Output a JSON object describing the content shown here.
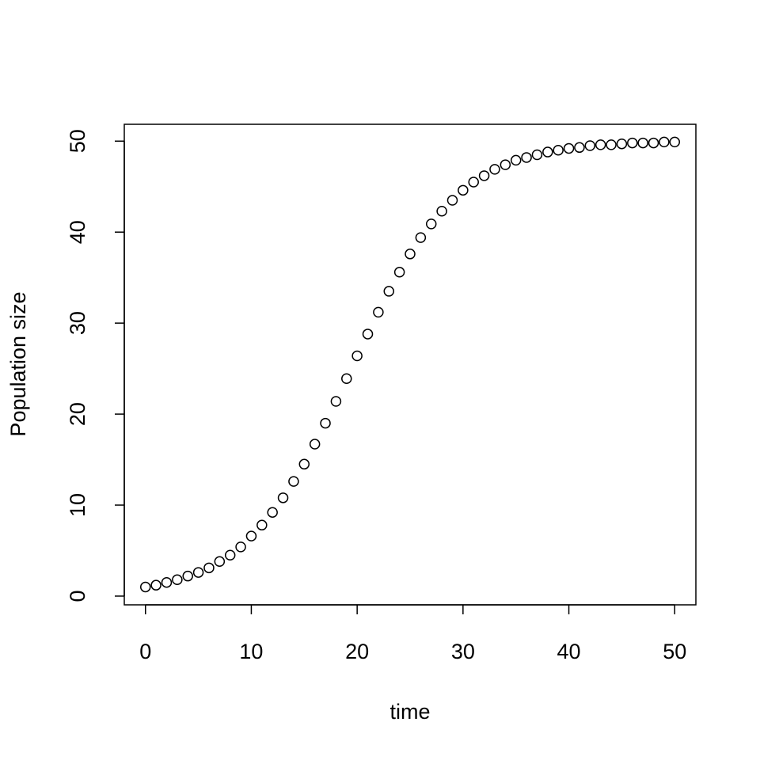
{
  "chart_data": {
    "type": "scatter",
    "x_label": "time",
    "y_label": "Population size",
    "x": [
      0,
      1,
      2,
      3,
      4,
      5,
      6,
      7,
      8,
      9,
      10,
      11,
      12,
      13,
      14,
      15,
      16,
      17,
      18,
      19,
      20,
      21,
      22,
      23,
      24,
      25,
      26,
      27,
      28,
      29,
      30,
      31,
      32,
      33,
      34,
      35,
      36,
      37,
      38,
      39,
      40,
      41,
      42,
      43,
      44,
      45,
      46,
      47,
      48,
      49,
      50
    ],
    "values": [
      1.0,
      1.2,
      1.5,
      1.8,
      2.2,
      2.6,
      3.1,
      3.8,
      4.5,
      5.4,
      6.6,
      7.8,
      9.2,
      10.8,
      12.6,
      14.5,
      16.7,
      19.0,
      21.4,
      23.9,
      26.4,
      28.8,
      31.2,
      33.5,
      35.6,
      37.6,
      39.4,
      40.9,
      42.3,
      43.5,
      44.6,
      45.5,
      46.2,
      46.9,
      47.4,
      47.9,
      48.2,
      48.5,
      48.8,
      49.0,
      49.2,
      49.3,
      49.5,
      49.6,
      49.6,
      49.7,
      49.8,
      49.8,
      49.8,
      49.9,
      49.9
    ],
    "color": "#000000",
    "xlim": [
      -2,
      52
    ],
    "xticks": [
      0,
      10,
      20,
      30,
      40,
      50
    ],
    "ylim": [
      -0.96,
      51.85
    ],
    "yticks": [
      0,
      10,
      20,
      30,
      40,
      50
    ]
  }
}
